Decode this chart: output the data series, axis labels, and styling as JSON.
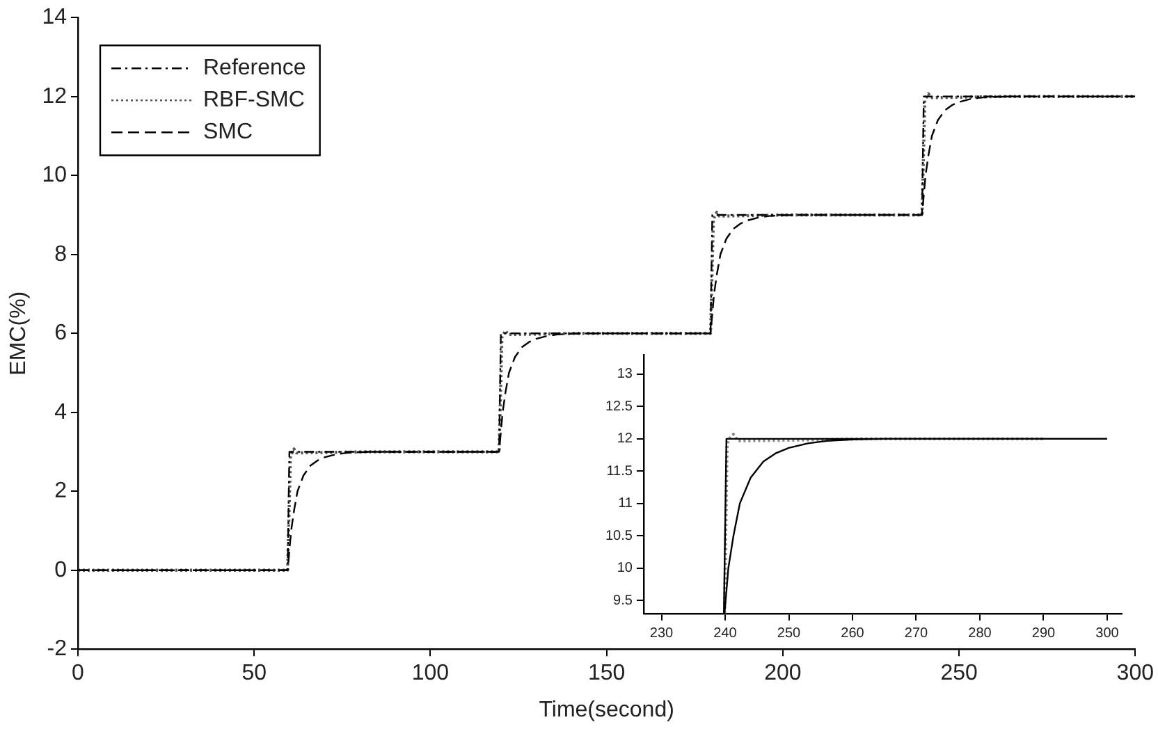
{
  "chart_data": [
    {
      "type": "line",
      "xlabel": "Time(second)",
      "ylabel": "EMC(%)",
      "xlim": [
        0,
        300
      ],
      "ylim": [
        -2,
        14
      ],
      "xticks": [
        0,
        50,
        100,
        150,
        200,
        250,
        300
      ],
      "yticks": [
        -2,
        0,
        2,
        4,
        6,
        8,
        10,
        12,
        14
      ],
      "grid": false,
      "legend": "top left",
      "marker": "none",
      "series": [
        {
          "name": "Reference",
          "color": "#000000",
          "line_style": "dashdot",
          "x": [
            0,
            59.5,
            60,
            119.5,
            120,
            179.5,
            180,
            239.5,
            240,
            300
          ],
          "values": [
            0,
            0,
            3,
            3,
            6,
            6,
            9,
            9,
            12,
            12
          ]
        },
        {
          "name": "RBF-SMC",
          "color": "#555555",
          "line_style": "dotted",
          "x": [
            0,
            59.5,
            60.3,
            61.3,
            62,
            70,
            82,
            119.5,
            120.3,
            121.3,
            122,
            130,
            142,
            179.5,
            180.3,
            181.3,
            182,
            190,
            202,
            239.5,
            240.3,
            241.3,
            242,
            250,
            262,
            300
          ],
          "values": [
            0,
            0,
            2.9,
            3.07,
            2.97,
            2.98,
            3,
            3,
            5.9,
            6.07,
            5.97,
            5.98,
            6,
            6,
            8.9,
            9.07,
            8.97,
            8.98,
            9,
            9,
            11.9,
            12.07,
            11.97,
            11.98,
            12,
            12
          ]
        },
        {
          "name": "SMC",
          "color": "#000000",
          "line_style": "dashed",
          "x": [
            0,
            59.5,
            60.5,
            61.3,
            62.3,
            64,
            66,
            68,
            70,
            73,
            76,
            80,
            85,
            119.5,
            120.5,
            121.3,
            122.3,
            124,
            126,
            128,
            130,
            133,
            136,
            140,
            145,
            179.5,
            180.5,
            181.3,
            182.3,
            184,
            186,
            188,
            190,
            193,
            196,
            200,
            205,
            239.5,
            240.5,
            241.3,
            242.3,
            244,
            246,
            248,
            250,
            253,
            256,
            260,
            265,
            300
          ],
          "values": [
            0,
            0,
            1,
            1.5,
            2,
            2.4,
            2.65,
            2.78,
            2.86,
            2.93,
            2.97,
            2.99,
            3,
            3,
            4,
            4.5,
            5,
            5.4,
            5.65,
            5.78,
            5.86,
            5.93,
            5.97,
            5.99,
            6,
            6,
            7,
            7.5,
            8,
            8.4,
            8.65,
            8.78,
            8.86,
            8.93,
            8.97,
            8.99,
            9,
            9,
            10,
            10.5,
            11,
            11.4,
            11.65,
            11.78,
            11.86,
            11.93,
            11.97,
            11.99,
            12,
            12
          ]
        }
      ]
    },
    {
      "type": "line",
      "xlim": [
        227.2,
        302.3
      ],
      "ylim": [
        9.3,
        13.3
      ],
      "xticks": [
        230,
        240,
        250,
        260,
        270,
        280,
        290,
        300
      ],
      "yticks": [
        9.5,
        10,
        10.5,
        11,
        11.5,
        12,
        12.5,
        13
      ],
      "grid": false,
      "marker": "none",
      "series": [
        {
          "color": "#000000",
          "line_style": "solid",
          "x": [
            239.8,
            240.2,
            300
          ],
          "values": [
            9.3,
            12,
            12
          ]
        },
        {
          "color": "#888888",
          "line_style": "dotted",
          "x": [
            239.9,
            240.3,
            240.6,
            241.3,
            242,
            250,
            262,
            290
          ],
          "values": [
            9.3,
            11.9,
            12,
            12.07,
            11.97,
            11.98,
            12,
            12
          ]
        },
        {
          "color": "#000000",
          "line_style": "solid",
          "x": [
            239.9,
            240.5,
            241.3,
            242.3,
            244,
            246,
            248,
            250,
            253,
            256,
            260,
            265,
            300
          ],
          "values": [
            9.3,
            10,
            10.5,
            11,
            11.4,
            11.65,
            11.78,
            11.86,
            11.93,
            11.97,
            11.99,
            12,
            12
          ]
        }
      ]
    }
  ]
}
